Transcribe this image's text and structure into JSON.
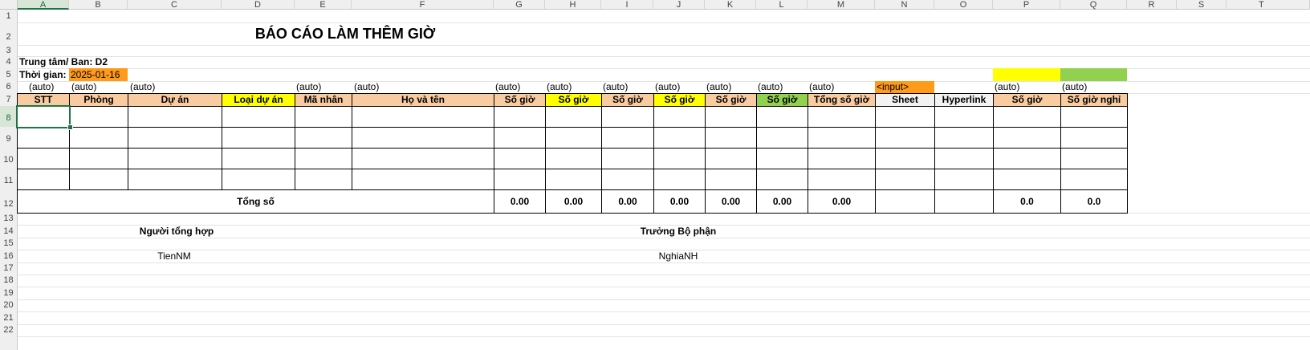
{
  "columns": [
    "A",
    "B",
    "C",
    "D",
    "E",
    "F",
    "G",
    "H",
    "I",
    "J",
    "K",
    "L",
    "M",
    "N",
    "O",
    "P",
    "Q",
    "R",
    "S",
    "T"
  ],
  "rows": [
    "1",
    "2",
    "3",
    "4",
    "5",
    "6",
    "7",
    "8",
    "9",
    "10",
    "11",
    "12",
    "13",
    "14",
    "15",
    "16",
    "17",
    "18",
    "19",
    "20",
    "21",
    "22"
  ],
  "title": "BÁO CÁO LÀM THÊM GIỜ",
  "unit_label": "Trung tâm/ Ban: D2",
  "time_label": "Thời gian:",
  "time_value": "2025-01-16",
  "auto": "(auto)",
  "input_tag": "<input>",
  "headers": {
    "stt": "STT",
    "phong": "Phòng",
    "du_an": "Dự án",
    "loai_du_an": "Loại dự án",
    "ma_nhan": "Mã nhân",
    "ho_ten": "Họ và tên",
    "so_gio_g": "Số giờ",
    "so_gio_h": "Số giờ",
    "so_gio_i": "Số giờ",
    "so_gio_j": "Số giờ",
    "so_gio_k": "Số giờ",
    "so_gio_l": "Số giờ",
    "tong_so_gio": "Tổng số giờ",
    "sheet": "Sheet",
    "hyperlink": "Hyperlink",
    "so_gio_p": "Số giờ",
    "so_gio_nghi": "Số giờ nghỉ"
  },
  "totals": {
    "label": "Tổng số",
    "g": "0.00",
    "h": "0.00",
    "i": "0.00",
    "j": "0.00",
    "k": "0.00",
    "l": "0.00",
    "m": "0.00",
    "p": "0.0",
    "q": "0.0"
  },
  "signatures": {
    "left_title": "Người tổng hợp",
    "left_name": "TienNM",
    "right_title": "Trưởng Bộ phận",
    "right_name": "NghiaNH"
  },
  "colors": {
    "header_orange": "#f8cba1",
    "header_yellow": "#ffff00",
    "header_green": "#92d050",
    "input_orange": "#ff9a1a",
    "selection_green": "#217346"
  }
}
